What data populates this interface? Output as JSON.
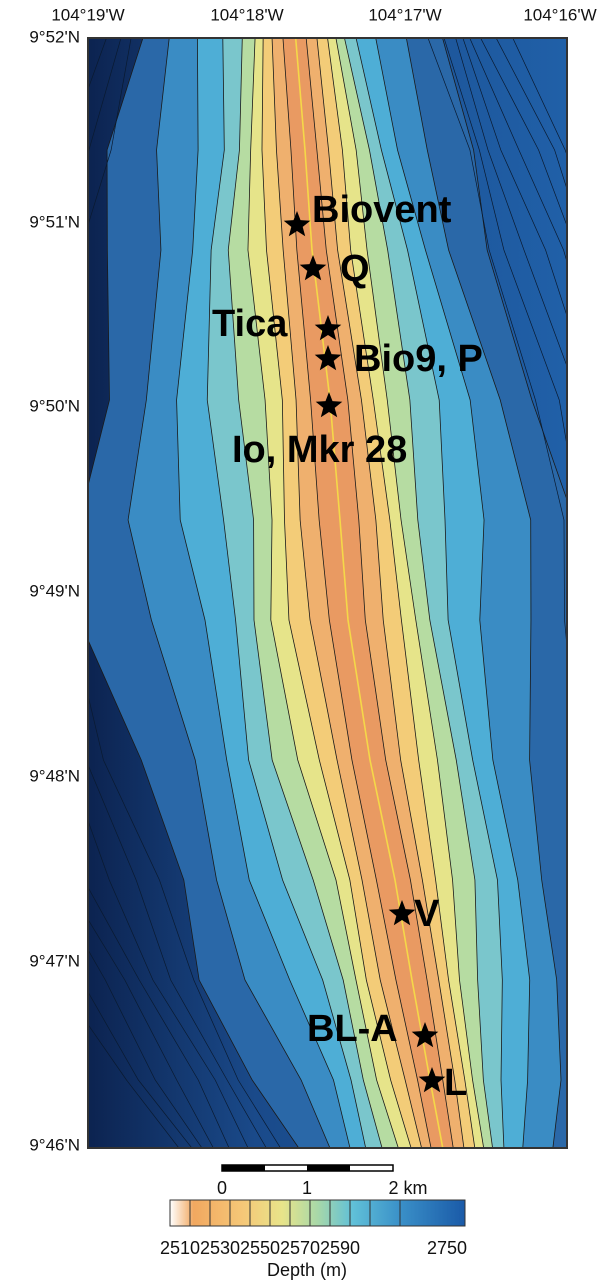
{
  "axes": {
    "longitude_labels": [
      "104°19'W",
      "104°18'W",
      "104°17'W",
      "104°16'W"
    ],
    "latitude_labels": [
      "9°52'N",
      "9°51'N",
      "9°50'N",
      "9°49'N",
      "9°48'N",
      "9°47'N",
      "9°46'N"
    ]
  },
  "sites": [
    {
      "label": "Biovent"
    },
    {
      "label": "Q"
    },
    {
      "label": "Tica"
    },
    {
      "label": "Bio9, P"
    },
    {
      "label": "Io, Mkr 28"
    },
    {
      "label": "V"
    },
    {
      "label": "BL-A"
    },
    {
      "label": "L"
    }
  ],
  "scale_bar": {
    "labels": [
      "0",
      "1",
      "2 km"
    ]
  },
  "color_bar": {
    "labels": [
      "2510",
      "2530",
      "2550",
      "2570",
      "2590",
      "2750"
    ],
    "title": "Depth (m)"
  }
}
